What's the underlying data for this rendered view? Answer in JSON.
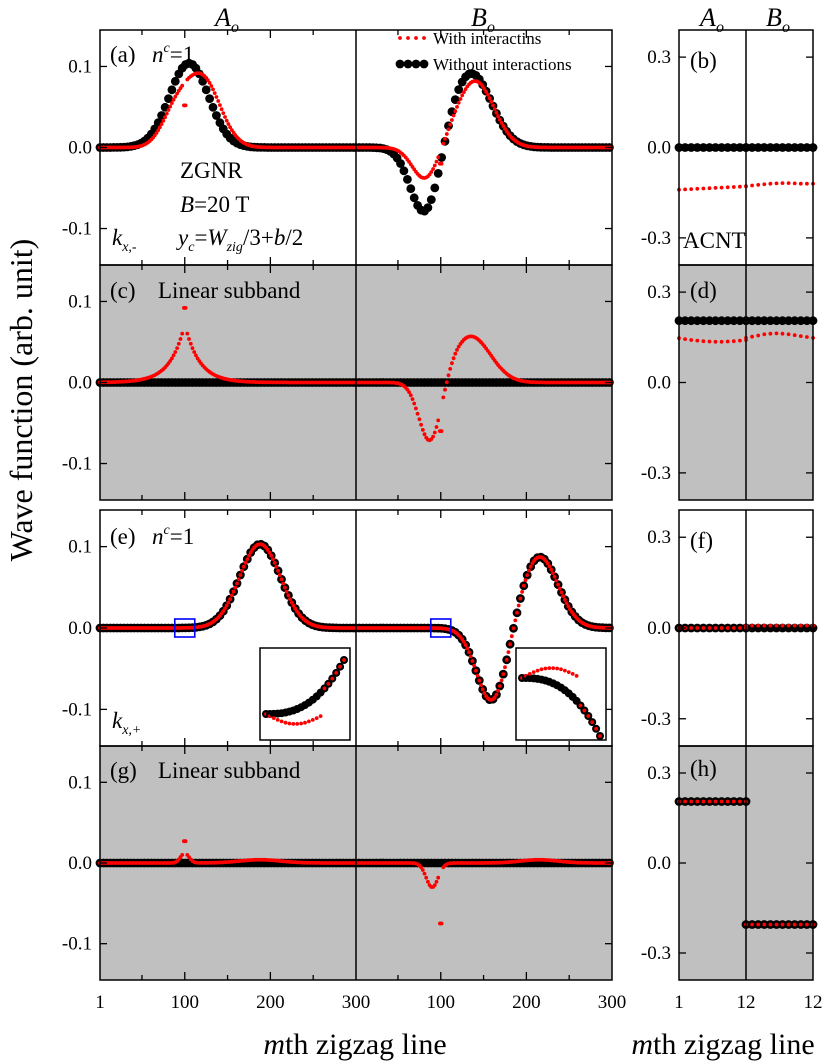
{
  "figure": {
    "column_headers": {
      "left": {
        "base": "A",
        "sub": "o"
      },
      "mid": {
        "base": "B",
        "sub": "o"
      },
      "right_a": {
        "base": "A",
        "sub": "o"
      },
      "right_b": {
        "base": "B",
        "sub": "o"
      }
    },
    "ylabel": "Wave function (arb. unit)",
    "xlabel_left": {
      "italic": "m",
      "rest": "th zigzag line"
    },
    "xlabel_right": {
      "italic": "m",
      "rest": "th zigzag line"
    },
    "legend": [
      {
        "label": "With interactins",
        "color": "#ff0000",
        "style": "small dotted"
      },
      {
        "label": "Without interactions",
        "color": "#000000",
        "style": "large dots"
      }
    ],
    "colors": {
      "with": "#ff0000",
      "without": "#000000",
      "shade": "#c0c0c0",
      "marker_box": "#0000ff"
    }
  },
  "chart_data": [
    {
      "panel": "(a)",
      "type": "scatter",
      "shaded": false,
      "annotations": [
        "n^c=1",
        "ZGNR",
        "B=20 T",
        "k_{x,-}",
        "y_c=W_{zig}/3+b/2"
      ],
      "x_left": {
        "range": [
          1,
          300
        ],
        "ticks": [
          "1",
          "100",
          "200",
          "300"
        ]
      },
      "x_right": {
        "range": [
          1,
          300
        ],
        "ticks": [
          "100",
          "200",
          "300"
        ]
      },
      "ylim": [
        -0.145,
        0.145
      ],
      "yticks": [
        "0.1",
        "0.0",
        "-0.1"
      ],
      "series": [
        {
          "name": "Without interactions",
          "A_o": {
            "center": 105,
            "width": 23,
            "amplitude": 0.104
          },
          "B_o": {
            "peaks": [
              {
                "center": 82,
                "width": 17,
                "amplitude": -0.086
              },
              {
                "center": 135,
                "width": 24,
                "amplitude": 0.092
              }
            ]
          }
        },
        {
          "name": "With interactins",
          "A_o": {
            "peaks": [
              {
                "center": 120,
                "width": 21,
                "amplitude": 0.086
              },
              {
                "center": 88,
                "width": 16,
                "amplitude": 0.034
              }
            ],
            "spike": {
              "x": 100,
              "value": 0.052
            }
          },
          "B_o": {
            "peaks": [
              {
                "center": 82,
                "width": 15,
                "amplitude": -0.04
              },
              {
                "center": 140,
                "width": 22,
                "amplitude": 0.082
              }
            ],
            "spike": {
              "x": 100,
              "value": -0.02
            }
          }
        }
      ]
    },
    {
      "panel": "(b)",
      "type": "scatter",
      "shaded": false,
      "annotations": [
        "ACNT"
      ],
      "x_left": {
        "range": [
          1,
          12
        ],
        "ticks": [
          "1",
          "12"
        ]
      },
      "x_right": {
        "range": [
          1,
          12
        ],
        "ticks": [
          "12"
        ]
      },
      "ylim": [
        -0.39,
        0.39
      ],
      "yticks": [
        "0.3",
        "0.0",
        "-0.3"
      ],
      "series": [
        {
          "name": "Without interactions",
          "A_o": [
            0,
            0,
            0,
            0,
            0,
            0,
            0,
            0,
            0,
            0,
            0,
            0
          ],
          "B_o": [
            0,
            0,
            0,
            0,
            0,
            0,
            0,
            0,
            0,
            0,
            0,
            0
          ]
        },
        {
          "name": "With interactins",
          "A_o": [
            -0.14,
            -0.139,
            -0.138,
            -0.137,
            -0.136,
            -0.135,
            -0.134,
            -0.133,
            -0.132,
            -0.131,
            -0.13,
            -0.129
          ],
          "B_o": [
            -0.128,
            -0.126,
            -0.124,
            -0.122,
            -0.12,
            -0.119,
            -0.118,
            -0.118,
            -0.119,
            -0.12,
            -0.12,
            -0.12
          ]
        }
      ]
    },
    {
      "panel": "(c)",
      "type": "scatter",
      "shaded": true,
      "annotations": [
        "Linear subband"
      ],
      "x_left": {
        "range": [
          1,
          300
        ],
        "ticks": [
          "1",
          "100",
          "200",
          "300"
        ]
      },
      "x_right": {
        "range": [
          1,
          300
        ],
        "ticks": [
          "100",
          "200",
          "300"
        ]
      },
      "ylim": [
        -0.145,
        0.145
      ],
      "yticks": [
        "0.1",
        "0.0",
        "-0.1"
      ],
      "series": [
        {
          "name": "Without interactions",
          "A_o": {
            "constant": 0
          },
          "B_o": {
            "constant": 0
          }
        },
        {
          "name": "With interactins",
          "A_o": {
            "cusp": {
              "center": 100,
              "amplitude": 0.072,
              "decay": 17
            },
            "spike": {
              "x": 100,
              "value": 0.092
            }
          },
          "B_o": {
            "peaks": [
              {
                "center": 88,
                "width": 13,
                "amplitude": -0.078
              },
              {
                "center": 135,
                "width": 23,
                "amplitude": 0.057
              }
            ],
            "spike": {
              "x": 100,
              "value": -0.06
            }
          }
        }
      ]
    },
    {
      "panel": "(d)",
      "type": "scatter",
      "shaded": true,
      "annotations": [],
      "x_left": {
        "range": [
          1,
          12
        ],
        "ticks": [
          "1",
          "12"
        ]
      },
      "x_right": {
        "range": [
          1,
          12
        ],
        "ticks": [
          "12"
        ]
      },
      "ylim": [
        -0.39,
        0.39
      ],
      "yticks": [
        "0.3",
        "0.0",
        "-0.3"
      ],
      "series": [
        {
          "name": "Without interactions",
          "A_o": [
            0.205,
            0.205,
            0.205,
            0.205,
            0.205,
            0.205,
            0.205,
            0.205,
            0.205,
            0.205,
            0.205,
            0.205
          ],
          "B_o": [
            0.205,
            0.205,
            0.205,
            0.205,
            0.205,
            0.205,
            0.205,
            0.205,
            0.205,
            0.205,
            0.205,
            0.205
          ]
        },
        {
          "name": "With interactins",
          "A_o": [
            0.147,
            0.144,
            0.141,
            0.139,
            0.137,
            0.136,
            0.135,
            0.135,
            0.136,
            0.137,
            0.139,
            0.141
          ],
          "B_o": [
            0.148,
            0.152,
            0.156,
            0.16,
            0.162,
            0.163,
            0.162,
            0.16,
            0.157,
            0.154,
            0.151,
            0.148
          ]
        }
      ]
    },
    {
      "panel": "(e)",
      "type": "scatter",
      "shaded": false,
      "annotations": [
        "n^c=1",
        "k_{x,+}"
      ],
      "x_left": {
        "range": [
          1,
          300
        ],
        "ticks": [
          "1",
          "100",
          "200",
          "300"
        ]
      },
      "x_right": {
        "range": [
          1,
          300
        ],
        "ticks": [
          "100",
          "200",
          "300"
        ]
      },
      "ylim": [
        -0.145,
        0.145
      ],
      "yticks": [
        "0.1",
        "0.0",
        "-0.1"
      ],
      "insets": [
        {
          "column": "A_o",
          "zoom_center_x": 100
        },
        {
          "column": "B_o",
          "zoom_center_x": 100
        }
      ],
      "series": [
        {
          "name": "Without interactions",
          "A_o": {
            "center": 188,
            "width": 24,
            "amplitude": 0.103
          },
          "B_o": {
            "peaks": [
              {
                "center": 160,
                "width": 18,
                "amplitude": -0.092
              },
              {
                "center": 215,
                "width": 22,
                "amplitude": 0.088
              }
            ]
          }
        },
        {
          "name": "With interactins",
          "A_o": {
            "center": 188,
            "width": 24,
            "amplitude": 0.103
          },
          "B_o": {
            "peaks": [
              {
                "center": 160,
                "width": 18,
                "amplitude": -0.092
              },
              {
                "center": 215,
                "width": 22,
                "amplitude": 0.088
              }
            ]
          }
        }
      ]
    },
    {
      "panel": "(f)",
      "type": "scatter",
      "shaded": false,
      "annotations": [],
      "x_left": {
        "range": [
          1,
          12
        ],
        "ticks": [
          "1",
          "12"
        ]
      },
      "x_right": {
        "range": [
          1,
          12
        ],
        "ticks": [
          "12"
        ]
      },
      "ylim": [
        -0.39,
        0.39
      ],
      "yticks": [
        "0.3",
        "0.0",
        "-0.3"
      ],
      "series": [
        {
          "name": "Without interactions",
          "A_o": [
            0,
            0,
            0,
            0,
            0,
            0,
            0,
            0,
            0,
            0,
            0,
            0
          ],
          "B_o": [
            0,
            0,
            0,
            0,
            0,
            0,
            0,
            0,
            0,
            0,
            0,
            0
          ]
        },
        {
          "name": "With interactins",
          "A_o": [
            0,
            0,
            0,
            0,
            0,
            0,
            0,
            0,
            0,
            0,
            0,
            0
          ],
          "B_o": [
            0.008,
            0.008,
            0.008,
            0.008,
            0.008,
            0.008,
            0.008,
            0.008,
            0.008,
            0.008,
            0.008,
            0.008
          ]
        }
      ]
    },
    {
      "panel": "(g)",
      "type": "scatter",
      "shaded": true,
      "annotations": [
        "Linear subband"
      ],
      "x_left": {
        "range": [
          1,
          300
        ],
        "ticks": [
          "1",
          "100",
          "200",
          "300"
        ]
      },
      "x_right": {
        "range": [
          1,
          300
        ],
        "ticks": [
          "100",
          "200",
          "300"
        ]
      },
      "ylim": [
        -0.145,
        0.145
      ],
      "yticks": [
        "0.1",
        "0.0",
        "-0.1"
      ],
      "series": [
        {
          "name": "Without interactions",
          "A_o": {
            "constant": 0
          },
          "B_o": {
            "constant": 0
          }
        },
        {
          "name": "With interactins",
          "A_o": {
            "peaks": [
              {
                "center": 100,
                "width": 5,
                "amplitude": 0.012
              },
              {
                "center": 188,
                "width": 24,
                "amplitude": 0.004
              }
            ],
            "spike": {
              "x": 100,
              "value": 0.027
            }
          },
          "B_o": {
            "peaks": [
              {
                "center": 90,
                "width": 7,
                "amplitude": -0.03
              },
              {
                "center": 215,
                "width": 22,
                "amplitude": 0.004
              }
            ],
            "spike": {
              "x": 100,
              "value": -0.075
            }
          }
        }
      ]
    },
    {
      "panel": "(h)",
      "type": "scatter",
      "shaded": true,
      "annotations": [],
      "x_left": {
        "range": [
          1,
          12
        ],
        "ticks": [
          "1",
          "12"
        ]
      },
      "x_right": {
        "range": [
          1,
          12
        ],
        "ticks": [
          "12"
        ]
      },
      "ylim": [
        -0.39,
        0.39
      ],
      "yticks": [
        "0.3",
        "0.0",
        "-0.3"
      ],
      "series": [
        {
          "name": "Without interactions",
          "A_o": [
            0.205,
            0.205,
            0.205,
            0.205,
            0.205,
            0.205,
            0.205,
            0.205,
            0.205,
            0.205,
            0.205,
            0.205
          ],
          "B_o": [
            -0.205,
            -0.205,
            -0.205,
            -0.205,
            -0.205,
            -0.205,
            -0.205,
            -0.205,
            -0.205,
            -0.205,
            -0.205,
            -0.205
          ]
        },
        {
          "name": "With interactins",
          "A_o": [
            0.205,
            0.205,
            0.205,
            0.205,
            0.205,
            0.205,
            0.205,
            0.205,
            0.205,
            0.205,
            0.205,
            0.205
          ],
          "B_o": [
            -0.205,
            -0.205,
            -0.205,
            -0.205,
            -0.205,
            -0.205,
            -0.205,
            -0.205,
            -0.205,
            -0.205,
            -0.205,
            -0.205
          ]
        }
      ]
    }
  ]
}
